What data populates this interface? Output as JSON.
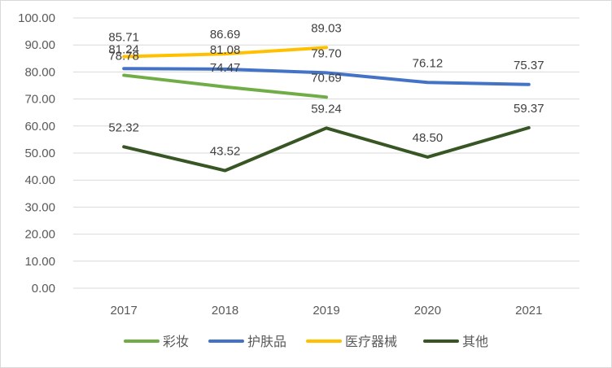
{
  "chart_data": {
    "type": "line",
    "title": "",
    "xlabel": "",
    "ylabel": "",
    "categories": [
      "2017",
      "2018",
      "2019",
      "2020",
      "2021"
    ],
    "ylim": [
      0,
      100
    ],
    "yticks": [
      "0.00",
      "10.00",
      "20.00",
      "30.00",
      "40.00",
      "50.00",
      "60.00",
      "70.00",
      "80.00",
      "90.00",
      "100.00"
    ],
    "grid": true,
    "legend_position": "bottom",
    "series": [
      {
        "name": "彩妆",
        "color": "#70ad47",
        "values": [
          78.78,
          74.47,
          70.69,
          null,
          null
        ],
        "labels": [
          "78.78",
          "74.47",
          "70.69",
          "",
          ""
        ]
      },
      {
        "name": "护肤品",
        "color": "#4472c4",
        "values": [
          81.24,
          81.08,
          79.7,
          76.12,
          75.37
        ],
        "labels": [
          "81.24",
          "81.08",
          "79.70",
          "76.12",
          "75.37"
        ]
      },
      {
        "name": "医疗器械",
        "color": "#ffc000",
        "values": [
          85.71,
          86.69,
          89.03,
          null,
          null
        ],
        "labels": [
          "85.71",
          "86.69",
          "89.03",
          "",
          ""
        ]
      },
      {
        "name": "其他",
        "color": "#375623",
        "values": [
          52.32,
          43.52,
          59.24,
          48.5,
          59.37
        ],
        "labels": [
          "52.32",
          "43.52",
          "59.24",
          "48.50",
          "59.37"
        ]
      }
    ]
  }
}
